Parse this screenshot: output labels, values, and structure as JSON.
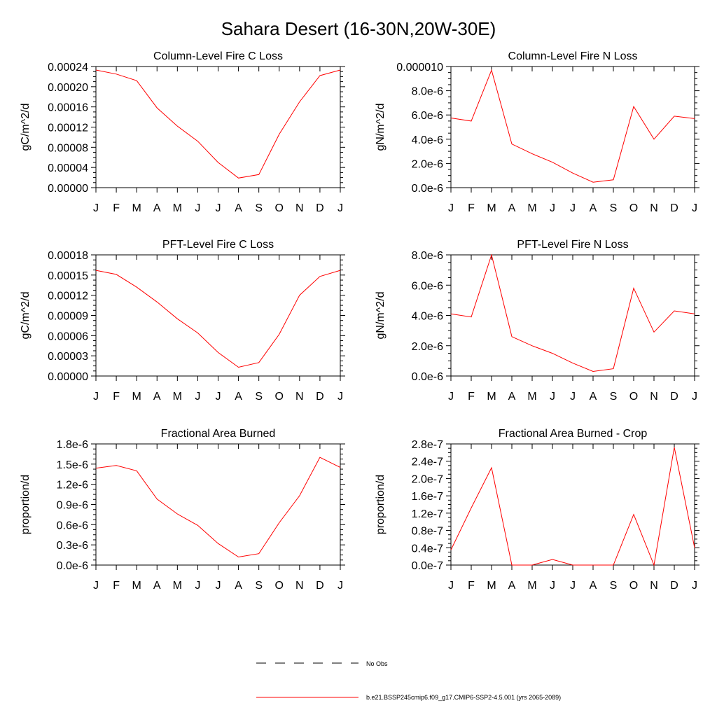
{
  "figure": {
    "title": "Sahara Desert (16-30N,20W-30E)"
  },
  "legend": {
    "obs_label": "No Obs",
    "model_label": "b.e21.BSSP245cmip6.f09_g17.CMIP6-SSP2-4.5.001 (yrs 2065-2089)",
    "model_color": "#ff0000"
  },
  "chart_data": [
    {
      "type": "line",
      "title": "Column-Level Fire C Loss",
      "ylabel": "gC/m^2/d",
      "categories": [
        "J",
        "F",
        "M",
        "A",
        "M",
        "J",
        "J",
        "A",
        "S",
        "O",
        "N",
        "D",
        "J"
      ],
      "ylim": [
        0,
        0.00024
      ],
      "yticks": [
        0,
        4e-05,
        8e-05,
        0.00012,
        0.00016,
        0.0002,
        0.00024
      ],
      "ytick_labels": [
        "0.00000",
        "0.00004",
        "0.00008",
        "0.00012",
        "0.00016",
        "0.00020",
        "0.00024"
      ],
      "series": [
        {
          "color": "#ff0000",
          "values": [
            0.000233,
            0.000225,
            0.000212,
            0.000158,
            0.000122,
            9.2e-05,
            5e-05,
            1.9e-05,
            2.6e-05,
            0.000106,
            0.00017,
            0.000222,
            0.000233
          ]
        }
      ]
    },
    {
      "type": "line",
      "title": "Column-Level Fire N Loss",
      "ylabel": "gN/m^2/d",
      "categories": [
        "J",
        "F",
        "M",
        "A",
        "M",
        "J",
        "J",
        "A",
        "S",
        "O",
        "N",
        "D",
        "J"
      ],
      "ylim": [
        0,
        1e-05
      ],
      "yticks": [
        0,
        2e-06,
        4e-06,
        6e-06,
        8e-06,
        1e-05
      ],
      "ytick_labels": [
        "0.0e-6",
        "2.0e-6",
        "4.0e-6",
        "6.0e-6",
        "8.0e-6",
        "0.000010"
      ],
      "series": [
        {
          "color": "#ff0000",
          "values": [
            5.75e-06,
            5.5e-06,
            9.7e-06,
            3.6e-06,
            2.8e-06,
            2.1e-06,
            1.2e-06,
            4.5e-07,
            6.5e-07,
            6.7e-06,
            4e-06,
            5.9e-06,
            5.7e-06
          ]
        }
      ]
    },
    {
      "type": "line",
      "title": "PFT-Level Fire C Loss",
      "ylabel": "gC/m^2/d",
      "categories": [
        "J",
        "F",
        "M",
        "A",
        "M",
        "J",
        "J",
        "A",
        "S",
        "O",
        "N",
        "D",
        "J"
      ],
      "ylim": [
        0,
        0.00018
      ],
      "yticks": [
        0,
        3e-05,
        6e-05,
        9e-05,
        0.00012,
        0.00015,
        0.00018
      ],
      "ytick_labels": [
        "0.00000",
        "0.00003",
        "0.00006",
        "0.00009",
        "0.00012",
        "0.00015",
        "0.00018"
      ],
      "series": [
        {
          "color": "#ff0000",
          "values": [
            0.000157,
            0.000151,
            0.000132,
            0.00011,
            8.5e-05,
            6.4e-05,
            3.5e-05,
            1.3e-05,
            2e-05,
            6.2e-05,
            0.00012,
            0.000148,
            0.000157
          ]
        }
      ]
    },
    {
      "type": "line",
      "title": "PFT-Level Fire N Loss",
      "ylabel": "gN/m^2/d",
      "categories": [
        "J",
        "F",
        "M",
        "A",
        "M",
        "J",
        "J",
        "A",
        "S",
        "O",
        "N",
        "D",
        "J"
      ],
      "ylim": [
        0,
        8e-06
      ],
      "yticks": [
        0,
        2e-06,
        4e-06,
        6e-06,
        8e-06
      ],
      "ytick_labels": [
        "0.0e-6",
        "2.0e-6",
        "4.0e-6",
        "6.0e-6",
        "8.0e-6"
      ],
      "series": [
        {
          "color": "#ff0000",
          "values": [
            4.1e-06,
            3.9e-06,
            8e-06,
            2.6e-06,
            2e-06,
            1.5e-06,
            8.5e-07,
            3e-07,
            4.8e-07,
            5.8e-06,
            2.9e-06,
            4.3e-06,
            4.1e-06
          ]
        }
      ]
    },
    {
      "type": "line",
      "title": "Fractional Area Burned",
      "ylabel": "proportion/d",
      "categories": [
        "J",
        "F",
        "M",
        "A",
        "M",
        "J",
        "J",
        "A",
        "S",
        "O",
        "N",
        "D",
        "J"
      ],
      "ylim": [
        0,
        1.8e-06
      ],
      "yticks": [
        0,
        3e-07,
        6e-07,
        9e-07,
        1.2e-06,
        1.5e-06,
        1.8e-06
      ],
      "ytick_labels": [
        "0.0e-6",
        "0.3e-6",
        "0.6e-6",
        "0.9e-6",
        "1.2e-6",
        "1.5e-6",
        "1.8e-6"
      ],
      "series": [
        {
          "color": "#ff0000",
          "values": [
            1.44e-06,
            1.48e-06,
            1.4e-06,
            9.8e-07,
            7.6e-07,
            5.9e-07,
            3.2e-07,
            1.2e-07,
            1.7e-07,
            6.3e-07,
            1.03e-06,
            1.6e-06,
            1.45e-06
          ]
        }
      ]
    },
    {
      "type": "line",
      "title": "Fractional Area Burned - Crop",
      "ylabel": "proportion/d",
      "categories": [
        "J",
        "F",
        "M",
        "A",
        "M",
        "J",
        "J",
        "A",
        "S",
        "O",
        "N",
        "D",
        "J"
      ],
      "ylim": [
        0,
        2.8e-07
      ],
      "yticks": [
        0,
        4e-08,
        8e-08,
        1.2e-07,
        1.6e-07,
        2e-07,
        2.4e-07,
        2.8e-07
      ],
      "ytick_labels": [
        "0.0e-7",
        "0.4e-7",
        "0.8e-7",
        "1.2e-7",
        "1.6e-7",
        "2.0e-7",
        "2.4e-7",
        "2.8e-7"
      ],
      "series": [
        {
          "color": "#ff0000",
          "values": [
            3.5e-08,
            1.32e-07,
            2.25e-07,
            0,
            0,
            1.3e-08,
            0,
            0,
            0,
            1.17e-07,
            0,
            2.72e-07,
            4e-08
          ]
        }
      ]
    }
  ]
}
